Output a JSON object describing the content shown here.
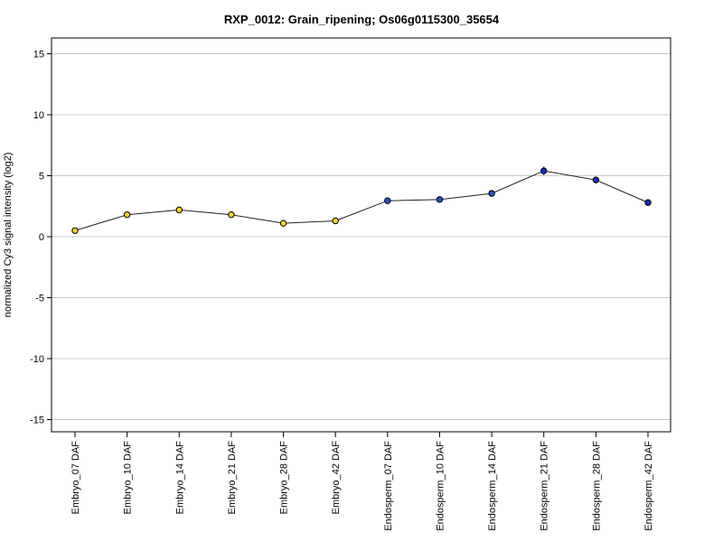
{
  "chart_data": {
    "type": "line",
    "title": "RXP_0012: Grain_ripening; Os06g0115300_35654",
    "xlabel": "",
    "ylabel": "normalized Cy3 signal intensity (log2)",
    "ylim": [
      -16,
      16.3
    ],
    "yticks": [
      -15,
      -10,
      -5,
      0,
      5,
      10,
      15
    ],
    "grid": "horizontal",
    "categories": [
      "Embryo_07 DAF",
      "Embryo_10 DAF",
      "Embryo_14 DAF",
      "Embryo_21 DAF",
      "Embryo_28 DAF",
      "Embryo_42 DAF",
      "Endosperm_07 DAF",
      "Endosperm_10 DAF",
      "Endosperm_14 DAF",
      "Endosperm_21 DAF",
      "Endosperm_28 DAF",
      "Endosperm_42 DAF"
    ],
    "values": [
      0.5,
      1.8,
      2.2,
      1.8,
      1.1,
      1.3,
      2.95,
      3.05,
      3.55,
      5.4,
      4.65,
      2.8
    ],
    "errors": [
      0.1,
      0.1,
      0.15,
      0.1,
      0.1,
      0.1,
      0.15,
      0.1,
      0.15,
      0.35,
      0.15,
      0.15
    ],
    "point_colors": [
      "#f2d430",
      "#f2d430",
      "#f2d430",
      "#f2d430",
      "#f2d430",
      "#f2d430",
      "#2a52be",
      "#2a52be",
      "#2a52be",
      "#1030c8",
      "#1a2eb0",
      "#1a2eb0"
    ],
    "line_color": "#222222",
    "grid_color": "#c8c8c8"
  }
}
